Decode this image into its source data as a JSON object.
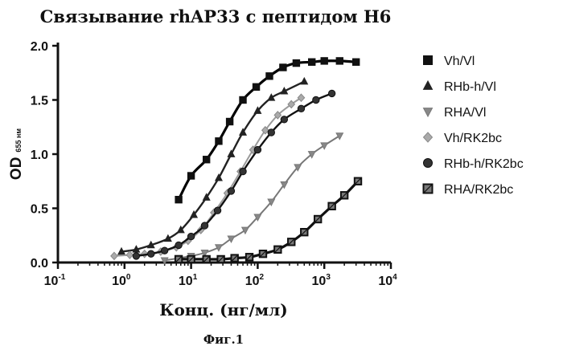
{
  "figure": {
    "title": "Связывание rhAP33 с пептидом H6",
    "caption": "Фиг.1"
  },
  "chart_data": {
    "type": "scatter",
    "title": "Связывание rhAP33 с пептидом H6",
    "xlabel": "Конц. (нг/мл)",
    "ylabel": "OD",
    "ylabel_sub": "655 нм",
    "xscale": "log",
    "xlim": [
      0.1,
      10000
    ],
    "ylim": [
      0,
      2.0
    ],
    "x_ticks": [
      {
        "base": "10",
        "exp": "-1",
        "value": 0.1
      },
      {
        "base": "10",
        "exp": "0",
        "value": 1
      },
      {
        "base": "10",
        "exp": "1",
        "value": 10
      },
      {
        "base": "10",
        "exp": "2",
        "value": 100
      },
      {
        "base": "10",
        "exp": "3",
        "value": 1000
      },
      {
        "base": "10",
        "exp": "4",
        "value": 10000
      }
    ],
    "y_ticks": [
      "0.0",
      "0.5",
      "1.0",
      "1.5",
      "2.0"
    ],
    "grid": false,
    "legend_position": "right",
    "series": [
      {
        "name": "Vh/Vl",
        "marker": "square",
        "color": "#111111",
        "fill": "#111111",
        "curve_color": "#000000",
        "curve_width": 3.2,
        "x": [
          6.5,
          10,
          17,
          26,
          38,
          60,
          95,
          150,
          240,
          380,
          650,
          1000,
          1700,
          3000
        ],
        "y": [
          0.58,
          0.8,
          0.95,
          1.12,
          1.3,
          1.5,
          1.62,
          1.72,
          1.8,
          1.84,
          1.85,
          1.86,
          1.86,
          1.85
        ]
      },
      {
        "name": "RHb-h/Vl",
        "marker": "triangle-up",
        "color": "#222222",
        "fill": "#222222",
        "curve_color": "#222222",
        "curve_width": 2.4,
        "x": [
          0.9,
          1.5,
          2.5,
          4.5,
          7,
          11,
          17,
          26,
          40,
          60,
          100,
          160,
          250,
          500
        ],
        "y": [
          0.1,
          0.12,
          0.16,
          0.22,
          0.3,
          0.44,
          0.6,
          0.78,
          1.0,
          1.2,
          1.4,
          1.52,
          1.58,
          1.67
        ]
      },
      {
        "name": "RHA/Vl",
        "marker": "triangle-down",
        "color": "#777777",
        "fill": "#888888",
        "curve_color": "#777777",
        "curve_width": 2.0,
        "x": [
          4,
          6.5,
          10,
          16,
          26,
          40,
          65,
          100,
          160,
          250,
          400,
          650,
          1000,
          1700
        ],
        "y": [
          0.02,
          0.04,
          0.06,
          0.09,
          0.14,
          0.22,
          0.3,
          0.42,
          0.56,
          0.72,
          0.88,
          1.0,
          1.08,
          1.17
        ]
      },
      {
        "name": "Vh/RK2bc",
        "marker": "diamond",
        "color": "#888888",
        "fill": "#aaaaaa",
        "curve_color": "#9a9a9a",
        "curve_width": 2.0,
        "x": [
          0.7,
          1.2,
          2,
          3.5,
          6,
          9,
          14,
          22,
          35,
          55,
          85,
          130,
          200,
          320,
          450
        ],
        "y": [
          0.06,
          0.07,
          0.08,
          0.1,
          0.14,
          0.2,
          0.3,
          0.46,
          0.64,
          0.84,
          1.04,
          1.22,
          1.36,
          1.46,
          1.52
        ]
      },
      {
        "name": "RHb-h/RK2bc",
        "marker": "circle",
        "color": "#111111",
        "fill": "#333333",
        "curve_color": "#111111",
        "curve_width": 2.4,
        "x": [
          1.5,
          2.5,
          4,
          6.5,
          10,
          16,
          25,
          40,
          60,
          100,
          160,
          250,
          450,
          750,
          1300
        ],
        "y": [
          0.06,
          0.08,
          0.11,
          0.16,
          0.24,
          0.34,
          0.48,
          0.66,
          0.84,
          1.04,
          1.2,
          1.32,
          1.42,
          1.5,
          1.56
        ]
      },
      {
        "name": "RHA/RK2bc",
        "marker": "square-hatched",
        "color": "#111111",
        "fill": "#7a7a7a",
        "curve_color": "#111111",
        "curve_width": 3.2,
        "x": [
          6.5,
          10,
          17,
          28,
          45,
          75,
          120,
          200,
          320,
          500,
          800,
          1300,
          2000,
          3200
        ],
        "y": [
          0.03,
          0.03,
          0.03,
          0.03,
          0.04,
          0.05,
          0.08,
          0.12,
          0.19,
          0.28,
          0.4,
          0.52,
          0.62,
          0.75
        ]
      }
    ]
  }
}
